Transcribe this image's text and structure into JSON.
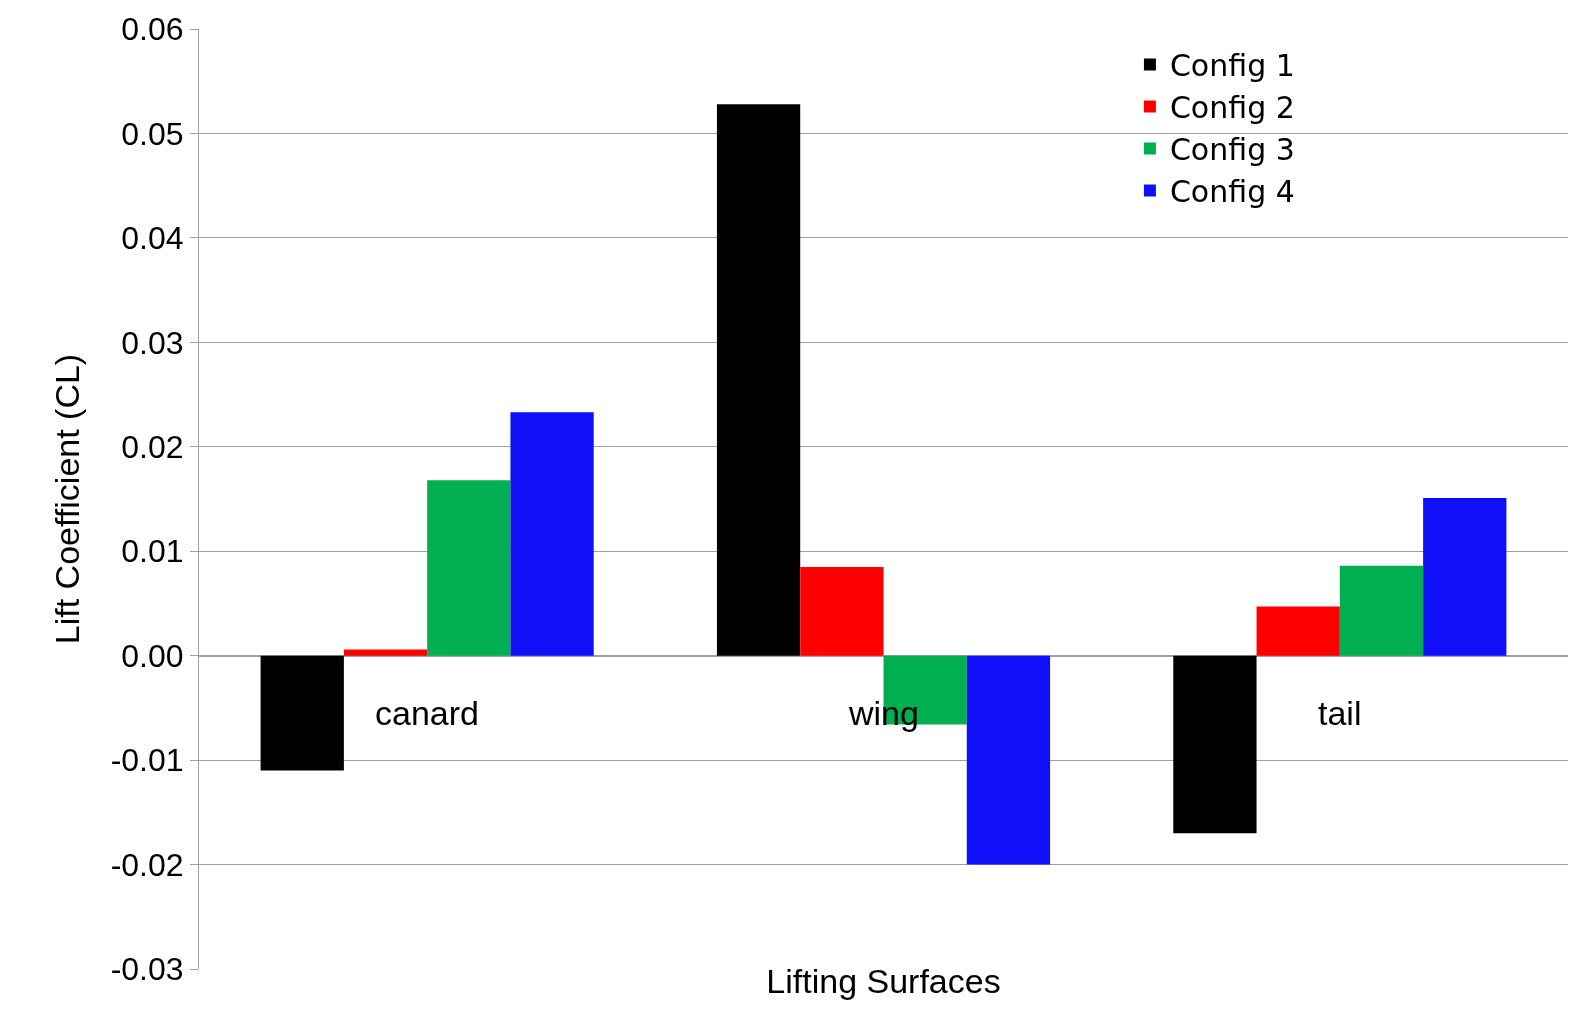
{
  "chart_data": {
    "type": "bar",
    "xlabel": "Lifting Surfaces",
    "ylabel": "Lift Coefficient (CL)",
    "categories": [
      "canard",
      "wing",
      "tail"
    ],
    "series": [
      {
        "name": "Config 1",
        "color": "#000000",
        "values": [
          -0.011,
          0.0528,
          -0.017
        ]
      },
      {
        "name": "Config 2",
        "color": "#ff0000",
        "values": [
          0.0006,
          0.0085,
          0.0047
        ]
      },
      {
        "name": "Config 3",
        "color": "#00b050",
        "values": [
          0.0168,
          -0.0066,
          0.0086
        ]
      },
      {
        "name": "Config 4",
        "color": "#1010f8",
        "values": [
          0.0233,
          -0.02,
          0.0151
        ]
      }
    ],
    "ylim": [
      -0.03,
      0.06
    ],
    "yticks": [
      {
        "value": -0.03,
        "label": "-0.03"
      },
      {
        "value": -0.02,
        "label": "-0.02"
      },
      {
        "value": -0.01,
        "label": "-0.01"
      },
      {
        "value": 0,
        "label": "0.00"
      },
      {
        "value": 0.01,
        "label": "0.01"
      },
      {
        "value": 0.02,
        "label": "0.02"
      },
      {
        "value": 0.03,
        "label": "0.03"
      },
      {
        "value": 0.04,
        "label": "0.04"
      },
      {
        "value": 0.05,
        "label": "0.05"
      },
      {
        "value": 0.06,
        "label": "0.06"
      }
    ],
    "grid": "y",
    "legend": "top right"
  }
}
